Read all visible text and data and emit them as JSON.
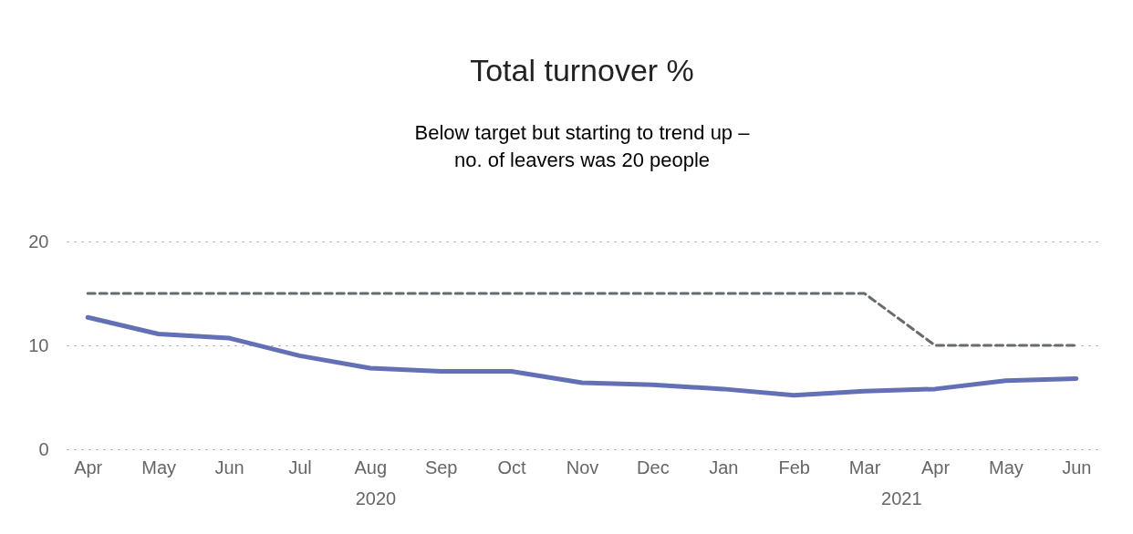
{
  "chart_data": {
    "type": "line",
    "title": "Total turnover %",
    "subtitle": "Below target but starting to trend up –\nno. of leavers was 20 people",
    "categories": [
      "Apr",
      "May",
      "Jun",
      "Jul",
      "Aug",
      "Sep",
      "Oct",
      "Nov",
      "Dec",
      "Jan",
      "Feb",
      "Mar",
      "Apr",
      "May",
      "Jun"
    ],
    "series": [
      {
        "color": "#6470b5",
        "line_style": "solid",
        "values": [
          12.7,
          11.1,
          10.7,
          9.0,
          7.8,
          7.5,
          7.5,
          6.4,
          6.2,
          5.8,
          5.2,
          5.6,
          5.8,
          6.6,
          6.8
        ]
      },
      {
        "color": "#666b6e",
        "line_style": "dashed",
        "values": [
          15,
          15,
          15,
          15,
          15,
          15,
          15,
          15,
          15,
          15,
          15,
          15,
          10,
          10,
          10
        ]
      }
    ],
    "ylim": [
      0,
      20
    ],
    "yticks": [
      0,
      10,
      20
    ],
    "grid": "y",
    "marker": "none",
    "annotations": [
      "2020",
      "2021"
    ]
  }
}
